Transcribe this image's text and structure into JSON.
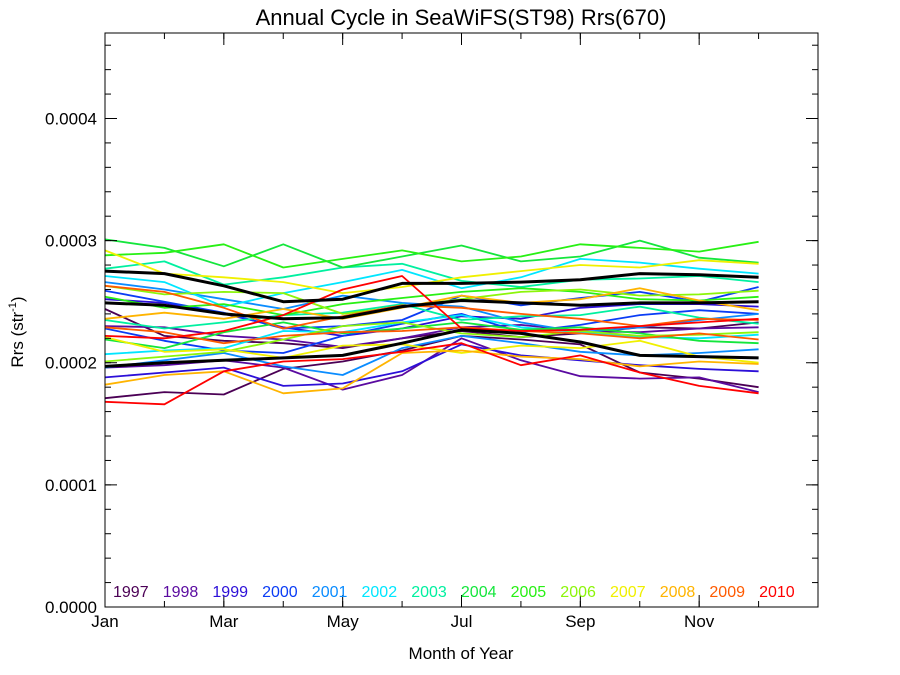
{
  "chart_data": {
    "type": "line",
    "title": "Annual Cycle in SeaWiFS(ST98) Rrs(670)",
    "xlabel": "Month of Year",
    "ylabel_main": "Rrs (str",
    "ylabel_sup": "-1",
    "ylabel_close": ")",
    "xlim": [
      1,
      13
    ],
    "ylim": [
      0,
      0.00047
    ],
    "x_ticks": [
      {
        "value": 1,
        "label": "Jan"
      },
      {
        "value": 3,
        "label": "Mar"
      },
      {
        "value": 5,
        "label": "May"
      },
      {
        "value": 7,
        "label": "Jul"
      },
      {
        "value": 9,
        "label": "Sep"
      },
      {
        "value": 11,
        "label": "Nov"
      }
    ],
    "y_ticks": [
      {
        "value": 0.0,
        "label": "0.0000"
      },
      {
        "value": 0.0001,
        "label": "0.0001"
      },
      {
        "value": 0.0002,
        "label": "0.0002"
      },
      {
        "value": 0.0003,
        "label": "0.0003"
      },
      {
        "value": 0.0004,
        "label": "0.0004"
      }
    ],
    "x": [
      1,
      2,
      3,
      4,
      5,
      6,
      7,
      8,
      9,
      10,
      11,
      12
    ],
    "series": [
      {
        "name": "1997",
        "color": "#4b0055",
        "lines": [
          [
            0.000171,
            0.000176,
            0.000174,
            0.000195,
            0.000201,
            0.00021,
            0.000222,
            0.000219,
            0.000215,
            0.000192,
            0.000187,
            0.00018
          ],
          [
            0.000244,
            0.000222,
            0.000218,
            0.000216,
            0.000212,
            0.00022,
            0.000226,
            0.000221,
            0.000224,
            0.000229,
            0.000228,
            0.000233
          ]
        ]
      },
      {
        "name": "1998",
        "color": "#5a0aa0",
        "lines": [
          [
            0.00023,
            0.000229,
            0.000222,
            0.000219,
            0.000213,
            0.00022,
            0.000229,
            0.000231,
            0.000226,
            0.000225,
            0.000228,
            0.000229
          ],
          [
            0.000196,
            0.000198,
            0.000202,
            0.000196,
            0.000178,
            0.00019,
            0.00022,
            0.000202,
            0.000189,
            0.000187,
            0.000188,
            0.000176
          ]
        ]
      },
      {
        "name": "1999",
        "color": "#2c0fd8",
        "lines": [
          [
            0.000188,
            0.000192,
            0.000196,
            0.000181,
            0.000183,
            0.000193,
            0.000215,
            0.000206,
            0.000202,
            0.000198,
            0.000195,
            0.000193
          ],
          [
            0.000252,
            0.000249,
            0.00024,
            0.000229,
            0.000222,
            0.000228,
            0.000238,
            0.000236,
            0.000245,
            0.000248,
            0.000248,
            0.000246
          ]
        ]
      },
      {
        "name": "2000",
        "color": "#0a3cf5",
        "lines": [
          [
            0.000228,
            0.000218,
            0.00021,
            0.000208,
            0.000222,
            0.000232,
            0.00024,
            0.000225,
            0.000231,
            0.000239,
            0.000243,
            0.00024
          ],
          [
            0.000259,
            0.00025,
            0.000241,
            0.000228,
            0.00023,
            0.000235,
            0.000255,
            0.000247,
            0.000253,
            0.000258,
            0.00025,
            0.000262
          ]
        ]
      },
      {
        "name": "2001",
        "color": "#0a8cff",
        "lines": [
          [
            0.000266,
            0.00026,
            0.000252,
            0.000244,
            0.000255,
            0.000249,
            0.000246,
            0.000233,
            0.000225,
            0.000229,
            0.000235,
            0.00024
          ],
          [
            0.000196,
            0.000202,
            0.000208,
            0.000197,
            0.00019,
            0.000212,
            0.000222,
            0.000216,
            0.000209,
            0.000206,
            0.000208,
            0.000211
          ]
        ]
      },
      {
        "name": "2002",
        "color": "#00e6ff",
        "lines": [
          [
            0.000271,
            0.000266,
            0.000246,
            0.000257,
            0.000266,
            0.000276,
            0.000261,
            0.00027,
            0.000285,
            0.000282,
            0.000277,
            0.000273
          ],
          [
            0.000207,
            0.00021,
            0.000212,
            0.000226,
            0.000225,
            0.000233,
            0.000239,
            0.000229,
            0.000225,
            0.000221,
            0.00022,
            0.000223
          ]
        ]
      },
      {
        "name": "2003",
        "color": "#00f0a0",
        "lines": [
          [
            0.000277,
            0.000283,
            0.000264,
            0.00027,
            0.000278,
            0.000281,
            0.000267,
            0.000262,
            0.000268,
            0.000269,
            0.000271,
            0.000266
          ],
          [
            0.000235,
            0.000228,
            0.000233,
            0.000239,
            0.000241,
            0.000248,
            0.000235,
            0.000238,
            0.000239,
            0.000246,
            0.000237,
            0.000232
          ]
        ]
      },
      {
        "name": "2004",
        "color": "#14e63c",
        "lines": [
          [
            0.000301,
            0.000294,
            0.000279,
            0.000297,
            0.000278,
            0.000287,
            0.000296,
            0.000283,
            0.000287,
            0.0003,
            0.000286,
            0.000282
          ],
          [
            0.000219,
            0.000212,
            0.000225,
            0.000233,
            0.000224,
            0.000228,
            0.000233,
            0.000227,
            0.000229,
            0.000224,
            0.000218,
            0.000216
          ]
        ]
      },
      {
        "name": "2005",
        "color": "#28f014",
        "lines": [
          [
            0.000288,
            0.00029,
            0.000297,
            0.000278,
            0.000285,
            0.000292,
            0.000283,
            0.000287,
            0.000297,
            0.000294,
            0.000291,
            0.000299
          ],
          [
            0.000254,
            0.000245,
            0.000248,
            0.000239,
            0.000248,
            0.000253,
            0.000258,
            0.000261,
            0.000258,
            0.000252,
            0.000251,
            0.000254
          ]
        ]
      },
      {
        "name": "2006",
        "color": "#8cf50a",
        "lines": [
          [
            0.000263,
            0.000256,
            0.000258,
            0.000257,
            0.00024,
            0.000246,
            0.000252,
            0.000258,
            0.00026,
            0.000255,
            0.000256,
            0.000259
          ],
          [
            0.000201,
            0.000205,
            0.000209,
            0.000219,
            0.00023,
            0.000233,
            0.000224,
            0.000221,
            0.000226,
            0.000222,
            0.000223,
            0.000225
          ]
        ]
      },
      {
        "name": "2007",
        "color": "#f0f000",
        "lines": [
          [
            0.000292,
            0.000273,
            0.00027,
            0.000266,
            0.000257,
            0.000262,
            0.00027,
            0.000275,
            0.00028,
            0.000278,
            0.000284,
            0.000281
          ],
          [
            0.000221,
            0.000209,
            0.000211,
            0.000204,
            0.000214,
            0.000215,
            0.000208,
            0.000214,
            0.000212,
            0.000218,
            0.000205,
            0.0002
          ]
        ]
      },
      {
        "name": "2008",
        "color": "#ffb400",
        "lines": [
          [
            0.000182,
            0.00019,
            0.000193,
            0.000175,
            0.000179,
            0.000208,
            0.00021,
            0.000205,
            0.000203,
            0.000197,
            0.000201,
            0.000199
          ],
          [
            0.000236,
            0.000241,
            0.000236,
            0.000244,
            0.000236,
            0.000245,
            0.000255,
            0.000249,
            0.000252,
            0.000261,
            0.000251,
            0.000243
          ]
        ]
      },
      {
        "name": "2009",
        "color": "#ff5a00",
        "lines": [
          [
            0.000263,
            0.000258,
            0.000245,
            0.000228,
            0.000238,
            0.000247,
            0.000245,
            0.00024,
            0.000236,
            0.00023,
            0.000236,
            0.000235
          ],
          [
            0.000229,
            0.000225,
            0.000216,
            0.000222,
            0.000225,
            0.000226,
            0.000229,
            0.000226,
            0.000224,
            0.00022,
            0.000224,
            0.000219
          ]
        ]
      },
      {
        "name": "2010",
        "color": "#ff0000",
        "lines": [
          [
            0.000168,
            0.000166,
            0.000193,
            0.000201,
            0.000203,
            0.000209,
            0.000216,
            0.000198,
            0.000206,
            0.000192,
            0.000181,
            0.000175
          ],
          [
            0.000222,
            0.00022,
            0.000226,
            0.000239,
            0.00026,
            0.000271,
            0.000228,
            0.000226,
            0.000227,
            0.00023,
            0.000233,
            0.000236
          ]
        ]
      }
    ],
    "mean_lines": {
      "color": "#000000",
      "lines": [
        [
          0.000275,
          0.000273,
          0.000263,
          0.00025,
          0.000252,
          0.000265,
          0.000265,
          0.000266,
          0.000268,
          0.000273,
          0.000272,
          0.00027
        ],
        [
          0.000249,
          0.000247,
          0.00024,
          0.000236,
          0.000237,
          0.000246,
          0.000251,
          0.000249,
          0.000247,
          0.000249,
          0.000249,
          0.00025
        ],
        [
          0.000197,
          0.0002,
          0.000202,
          0.000204,
          0.000206,
          0.000216,
          0.000227,
          0.000224,
          0.000217,
          0.000206,
          0.000205,
          0.000204
        ]
      ]
    },
    "legend_placement": "bottom",
    "grid": false
  }
}
